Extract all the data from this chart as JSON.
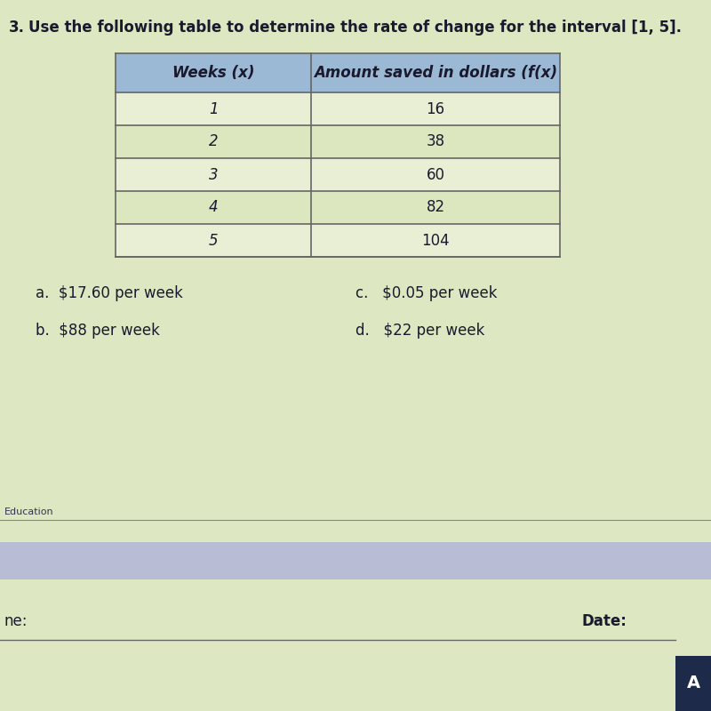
{
  "question_number": "3.",
  "question_text": "Use the following table to determine the rate of change for the interval [1, 5].",
  "col1_header": "Weeks (x)",
  "col2_header": "Amount saved in dollars (f(x)",
  "table_data": [
    [
      1,
      16
    ],
    [
      2,
      38
    ],
    [
      3,
      60
    ],
    [
      4,
      82
    ],
    [
      5,
      104
    ]
  ],
  "choices": [
    [
      "a.  $17.60 per week",
      "c.   $0.05 per week"
    ],
    [
      "b.  $88 per week",
      "d.   $22 per week"
    ]
  ],
  "footer_left": "Education",
  "footer_right_label": "Date:",
  "bg_color": "#dde8c2",
  "header_bg": "#9bb8d4",
  "row_bg_light": "#e8efd4",
  "row_bg_dark": "#dce7c0",
  "table_border": "#666666",
  "footer_bar_color_left": "#b8bcd4",
  "footer_bar_color_right": "#c8cce0",
  "bottom_bar_color": "#1e2a4a",
  "text_color": "#1a1a2e"
}
